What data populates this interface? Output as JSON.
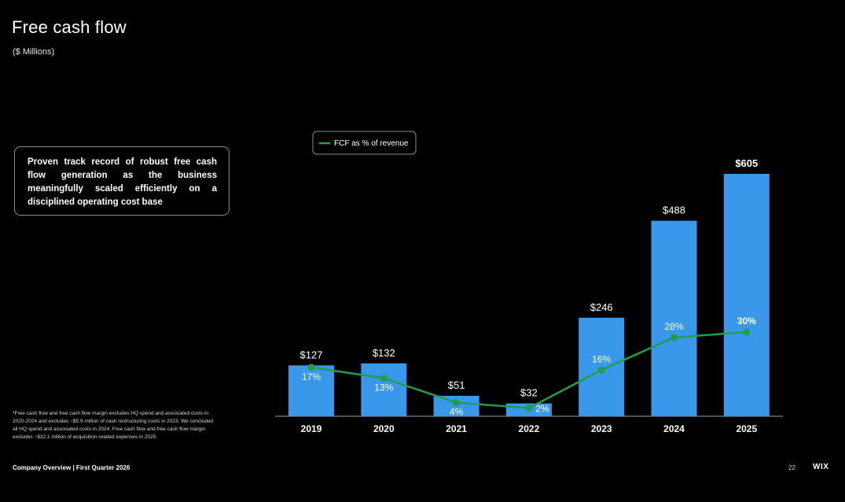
{
  "header": {
    "title": "Free cash flow",
    "subtitle": "($ Millions)"
  },
  "callout": {
    "text": "Proven track record of robust free cash flow generation as the business meaningfully scaled efficiently on a disciplined operating cost base"
  },
  "footnote": {
    "text": "*Free cash flow and free cash flow margin excludes HQ spend and associated costs in 2020-2024 and excludes ~$5.9 million of cash restructuring costs in 2023. We concluded all HQ spend and associated costs in 2024. Free cash flow and free cash flow margin excludes ~$32.1 million of acquisition-related expenses in 2025."
  },
  "footer": {
    "left": "Company Overview  |  First Quarter 2026",
    "page_number": "22",
    "logo": "WIX"
  },
  "colors": {
    "bar": "#3a98ea",
    "line": "#1f9e4b",
    "background": "#000000"
  },
  "chart_data": {
    "type": "bar",
    "categories": [
      "2019",
      "2020",
      "2021",
      "2022",
      "2023",
      "2024",
      "2025"
    ],
    "series": [
      {
        "type": "bar",
        "values": [
          127,
          132,
          51,
          32,
          246,
          488,
          605
        ],
        "labels": [
          "$127",
          "$132",
          "$51",
          "$32",
          "$246",
          "$488",
          "$605"
        ]
      },
      {
        "type": "line",
        "name": "FCF as % of revenue",
        "values": [
          17,
          13,
          4,
          2,
          16,
          28,
          30
        ],
        "labels": [
          "17%",
          "13%",
          "4%",
          "2%",
          "16%",
          "28%",
          "30%"
        ]
      }
    ],
    "ylim": [
      0,
      605
    ],
    "line_ylim": [
      0,
      30
    ],
    "grid": false,
    "legend": "top-left"
  }
}
